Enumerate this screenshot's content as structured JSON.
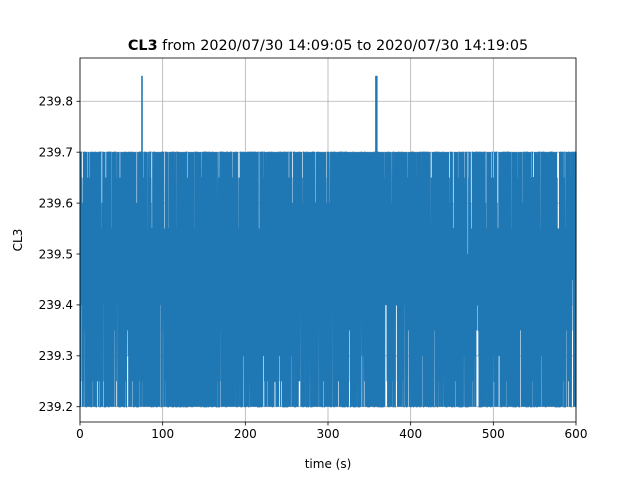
{
  "chart_data": {
    "type": "line",
    "title": {
      "bold": "CL3",
      "rest": " from 2020/07/30 14:09:05 to 2020/07/30 14:19:05"
    },
    "xlabel": "time (s)",
    "ylabel": "CL3",
    "xlim": [
      0,
      600
    ],
    "ylim": [
      239.17,
      239.885
    ],
    "xticks": [
      0,
      100,
      200,
      300,
      400,
      500,
      600
    ],
    "yticks": [
      239.2,
      239.3,
      239.4,
      239.5,
      239.6,
      239.7,
      239.8
    ],
    "ytick_labels": [
      "239.2",
      "239.3",
      "239.4",
      "239.5",
      "239.6",
      "239.7",
      "239.8"
    ],
    "grid": true,
    "line_color": "#1f77b4",
    "series": [
      {
        "sampling": "about 1 sample per 0.1 s, 0 to 600 s",
        "levels": [
          239.2,
          239.25,
          239.3,
          239.35,
          239.4,
          239.45,
          239.5,
          239.55,
          239.6,
          239.65,
          239.7
        ],
        "typical_band": [
          239.4,
          239.55
        ],
        "spikes": [
          {
            "x": 75,
            "y": 239.85
          },
          {
            "x": 358,
            "y": 239.85
          },
          {
            "x": 359,
            "y": 239.85
          }
        ]
      }
    ]
  }
}
